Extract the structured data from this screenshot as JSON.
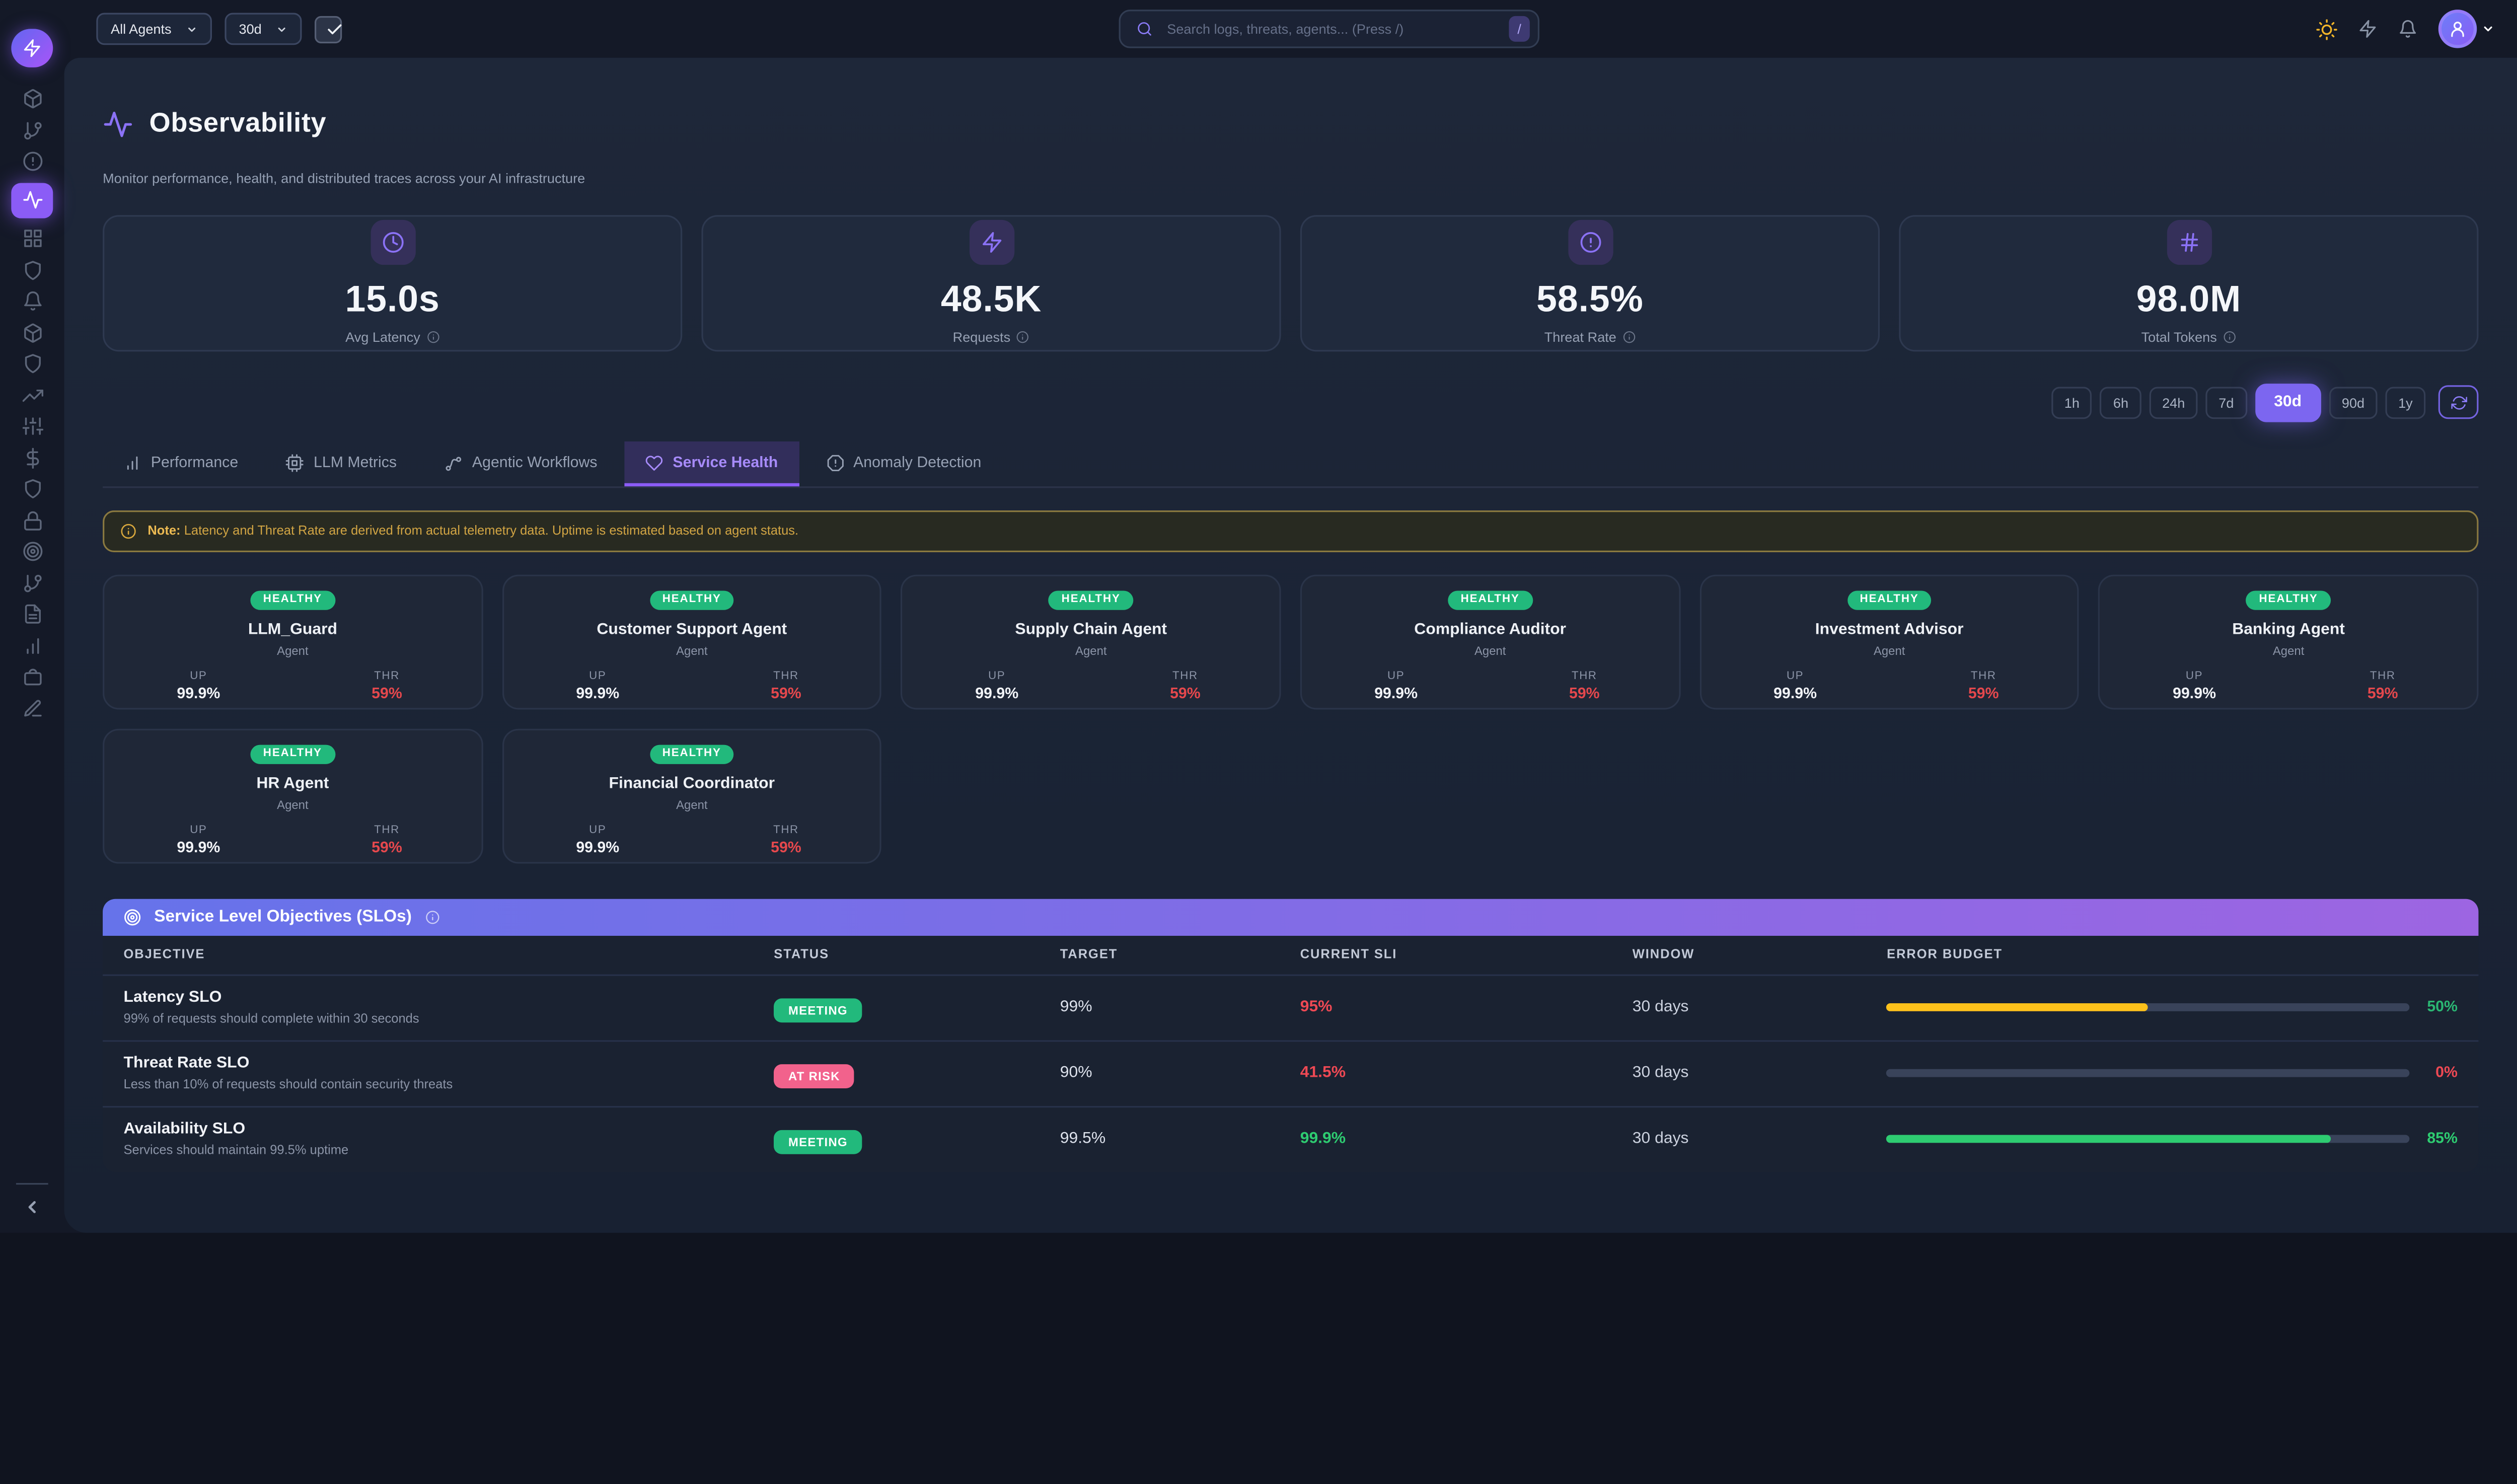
{
  "colors": {
    "accent_purple": "#8b5cf6",
    "healthy_green": "#22b97c",
    "risk_pink": "#f2628c",
    "warn_yellow": "#fdc11b",
    "error_red": "#ee4954",
    "ok_green": "#2ecc71"
  },
  "topbar": {
    "agent_filter": "All Agents",
    "time_filter": "30d",
    "search": {
      "placeholder": "Search logs, threats, agents... (Press /)",
      "shortcut": "/"
    },
    "icons": [
      "sun-icon",
      "zap-icon",
      "bell-icon",
      "avatar",
      "chevron-down-icon"
    ]
  },
  "sidebar": {
    "logo_icon": "zap-icon",
    "items": [
      {
        "icon": "cube-icon",
        "active": false
      },
      {
        "icon": "git-branch-icon",
        "active": false
      },
      {
        "icon": "alert-circle-icon",
        "active": false
      },
      {
        "icon": "activity-icon",
        "active": true
      },
      {
        "icon": "grid-icon",
        "active": false
      },
      {
        "icon": "shield-icon",
        "active": false
      },
      {
        "icon": "bell-icon",
        "active": false
      },
      {
        "icon": "cube-icon",
        "active": false
      },
      {
        "icon": "shield-icon",
        "active": false
      },
      {
        "icon": "trending-up-icon",
        "active": false
      },
      {
        "icon": "sliders-icon",
        "active": false
      },
      {
        "icon": "dollar-icon",
        "active": false
      },
      {
        "icon": "shield-icon",
        "active": false
      },
      {
        "icon": "lock-icon",
        "active": false
      },
      {
        "icon": "target-icon",
        "active": false
      },
      {
        "icon": "git-branch-icon",
        "active": false
      },
      {
        "icon": "file-text-icon",
        "active": false
      },
      {
        "icon": "bar-chart-icon",
        "active": false
      },
      {
        "icon": "briefcase-icon",
        "active": false
      },
      {
        "icon": "edit-icon",
        "active": false
      }
    ],
    "collapse_icon": "chevron-left-icon"
  },
  "page": {
    "title": "Observability",
    "subtitle": "Monitor performance, health, and distributed traces across your AI infrastructure"
  },
  "stats": [
    {
      "icon": "clock-icon",
      "value": "15.0s",
      "label": "Avg Latency"
    },
    {
      "icon": "zap-icon",
      "value": "48.5K",
      "label": "Requests"
    },
    {
      "icon": "alert-circle-icon",
      "value": "58.5%",
      "label": "Threat Rate"
    },
    {
      "icon": "hash-icon",
      "value": "98.0M",
      "label": "Total Tokens"
    }
  ],
  "time_ranges": {
    "options": [
      "1h",
      "6h",
      "24h",
      "7d",
      "30d",
      "90d",
      "1y"
    ],
    "active": "30d"
  },
  "tabs": [
    {
      "label": "Performance",
      "icon": "bar-chart-icon",
      "active": false
    },
    {
      "label": "LLM Metrics",
      "icon": "cpu-icon",
      "active": false
    },
    {
      "label": "Agentic Workflows",
      "icon": "workflow-icon",
      "active": false
    },
    {
      "label": "Service Health",
      "icon": "heart-icon",
      "active": true
    },
    {
      "label": "Anomaly Detection",
      "icon": "alert-octagon-icon",
      "active": false
    }
  ],
  "note": {
    "prefix": "Note:",
    "text": "Latency and Threat Rate are derived from actual telemetry data. Uptime is estimated based on agent status."
  },
  "agents": [
    {
      "status": "HEALTHY",
      "name": "LLM_Guard",
      "type": "Agent",
      "up_label": "UP",
      "up": "99.9%",
      "thr_label": "THR",
      "thr": "59%"
    },
    {
      "status": "HEALTHY",
      "name": "Customer Support Agent",
      "type": "Agent",
      "up_label": "UP",
      "up": "99.9%",
      "thr_label": "THR",
      "thr": "59%"
    },
    {
      "status": "HEALTHY",
      "name": "Supply Chain Agent",
      "type": "Agent",
      "up_label": "UP",
      "up": "99.9%",
      "thr_label": "THR",
      "thr": "59%"
    },
    {
      "status": "HEALTHY",
      "name": "Compliance Auditor",
      "type": "Agent",
      "up_label": "UP",
      "up": "99.9%",
      "thr_label": "THR",
      "thr": "59%"
    },
    {
      "status": "HEALTHY",
      "name": "Investment Advisor",
      "type": "Agent",
      "up_label": "UP",
      "up": "99.9%",
      "thr_label": "THR",
      "thr": "59%"
    },
    {
      "status": "HEALTHY",
      "name": "Banking Agent",
      "type": "Agent",
      "up_label": "UP",
      "up": "99.9%",
      "thr_label": "THR",
      "thr": "59%"
    },
    {
      "status": "HEALTHY",
      "name": "HR Agent",
      "type": "Agent",
      "up_label": "UP",
      "up": "99.9%",
      "thr_label": "THR",
      "thr": "59%"
    },
    {
      "status": "HEALTHY",
      "name": "Financial Coordinator",
      "type": "Agent",
      "up_label": "UP",
      "up": "99.9%",
      "thr_label": "THR",
      "thr": "59%"
    }
  ],
  "slo": {
    "title": "Service Level Objectives (SLOs)",
    "columns": [
      "OBJECTIVE",
      "STATUS",
      "TARGET",
      "CURRENT SLI",
      "WINDOW",
      "ERROR BUDGET"
    ],
    "rows": [
      {
        "name": "Latency SLO",
        "desc": "99% of requests should complete within 30 seconds",
        "status": "MEETING",
        "status_color": "#22b97c",
        "target": "99%",
        "sli": "95%",
        "sli_color": "#ee4954",
        "window": "30 days",
        "budget_pct": 50,
        "budget_label": "50%",
        "bar_color": "#fdc11b",
        "budget_color": "#2bb673"
      },
      {
        "name": "Threat Rate SLO",
        "desc": "Less than 10% of requests should contain security threats",
        "status": "AT RISK",
        "status_color": "#f2628c",
        "target": "90%",
        "sli": "41.5%",
        "sli_color": "#ee4954",
        "window": "30 days",
        "budget_pct": 0,
        "budget_label": "0%",
        "bar_color": "#fdc11b",
        "budget_color": "#ee4954"
      },
      {
        "name": "Availability SLO",
        "desc": "Services should maintain 99.5% uptime",
        "status": "MEETING",
        "status_color": "#22b97c",
        "target": "99.5%",
        "sli": "99.9%",
        "sli_color": "#2ecc71",
        "window": "30 days",
        "budget_pct": 85,
        "budget_label": "85%",
        "bar_color": "#2ecc71",
        "budget_color": "#2ecc71"
      }
    ]
  }
}
